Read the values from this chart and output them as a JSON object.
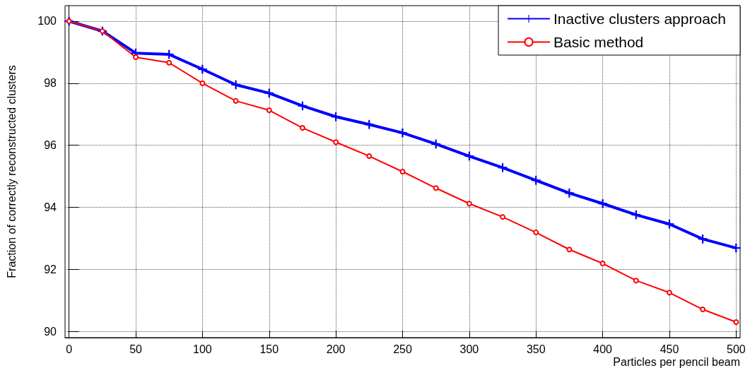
{
  "chart_data": {
    "type": "line",
    "xlabel": "Particles per pencil beam",
    "ylabel": "Fraction of correctly reconstructed clusters",
    "x": [
      0,
      25,
      50,
      75,
      100,
      125,
      150,
      175,
      200,
      225,
      250,
      275,
      300,
      325,
      350,
      375,
      400,
      425,
      450,
      475,
      500
    ],
    "series": [
      {
        "name": "Inactive clusters approach",
        "color": "#0000ff",
        "marker": "cross",
        "values": [
          100,
          99.68,
          98.97,
          98.93,
          98.45,
          97.95,
          97.68,
          97.27,
          96.92,
          96.67,
          96.4,
          96.04,
          95.65,
          95.28,
          94.87,
          94.46,
          94.12,
          93.76,
          93.46,
          92.98,
          92.69
        ]
      },
      {
        "name": "Basic method",
        "color": "#ff0000",
        "marker": "circle",
        "values": [
          100,
          99.68,
          98.84,
          98.66,
          98.0,
          97.43,
          97.13,
          96.56,
          96.1,
          95.65,
          95.15,
          94.62,
          94.12,
          93.69,
          93.19,
          92.64,
          92.19,
          91.64,
          91.25,
          90.71,
          90.3
        ]
      }
    ],
    "xlim": [
      -3,
      503
    ],
    "xticks": [
      0,
      50,
      100,
      150,
      200,
      250,
      300,
      350,
      400,
      450,
      500
    ],
    "ylim": [
      89.8,
      100.5
    ],
    "yticks": [
      90,
      92,
      94,
      96,
      98,
      100
    ],
    "grid": true,
    "legend": "top right",
    "line_style": "solid"
  }
}
